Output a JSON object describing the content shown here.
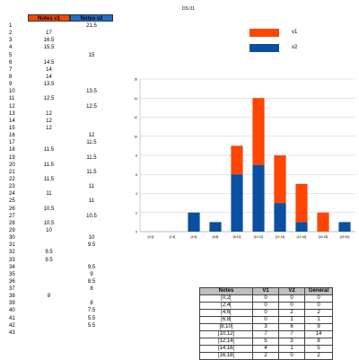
{
  "title": "DS 01",
  "columns": {
    "v1": "Notes v1",
    "v2": "Notes v2"
  },
  "rows": [
    {
      "n": "1",
      "v1": "",
      "v2": "21.5"
    },
    {
      "n": "2",
      "v1": "17",
      "v2": ""
    },
    {
      "n": "3",
      "v1": "16.5",
      "v2": ""
    },
    {
      "n": "4",
      "v1": "15.5",
      "v2": ""
    },
    {
      "n": "5",
      "v1": "",
      "v2": "15"
    },
    {
      "n": "6",
      "v1": "14.5",
      "v2": ""
    },
    {
      "n": "7",
      "v1": "14",
      "v2": ""
    },
    {
      "n": "8",
      "v1": "14",
      "v2": ""
    },
    {
      "n": "9",
      "v1": "13.5",
      "v2": ""
    },
    {
      "n": "10",
      "v1": "",
      "v2": "13.5"
    },
    {
      "n": "11",
      "v1": "12.5",
      "v2": ""
    },
    {
      "n": "12",
      "v1": "",
      "v2": "12.5"
    },
    {
      "n": "13",
      "v1": "12",
      "v2": ""
    },
    {
      "n": "14",
      "v1": "12",
      "v2": ""
    },
    {
      "n": "15",
      "v1": "12",
      "v2": ""
    },
    {
      "n": "16",
      "v1": "",
      "v2": "12"
    },
    {
      "n": "17",
      "v1": "",
      "v2": "11.5"
    },
    {
      "n": "18",
      "v1": "11.5",
      "v2": ""
    },
    {
      "n": "19",
      "v1": "",
      "v2": "11.5"
    },
    {
      "n": "20",
      "v1": "11.5",
      "v2": ""
    },
    {
      "n": "21",
      "v1": "",
      "v2": "11.5"
    },
    {
      "n": "22",
      "v1": "11.5",
      "v2": ""
    },
    {
      "n": "23",
      "v1": "",
      "v2": "11"
    },
    {
      "n": "24",
      "v1": "11",
      "v2": ""
    },
    {
      "n": "25",
      "v1": "",
      "v2": "11"
    },
    {
      "n": "26",
      "v1": "10.5",
      "v2": ""
    },
    {
      "n": "27",
      "v1": "",
      "v2": "10.5"
    },
    {
      "n": "28",
      "v1": "10.5",
      "v2": ""
    },
    {
      "n": "29",
      "v1": "10",
      "v2": ""
    },
    {
      "n": "30",
      "v1": "",
      "v2": "10"
    },
    {
      "n": "31",
      "v1": "",
      "v2": "9.5"
    },
    {
      "n": "32",
      "v1": "9.5",
      "v2": ""
    },
    {
      "n": "33",
      "v1": "9.5",
      "v2": ""
    },
    {
      "n": "34",
      "v1": "",
      "v2": "9.5"
    },
    {
      "n": "35",
      "v1": "",
      "v2": "9"
    },
    {
      "n": "36",
      "v1": "",
      "v2": "8.5"
    },
    {
      "n": "37",
      "v1": "",
      "v2": "8"
    },
    {
      "n": "38",
      "v1": "8",
      "v2": ""
    },
    {
      "n": "39",
      "v1": "",
      "v2": "8"
    },
    {
      "n": "40",
      "v1": "",
      "v2": "7.5"
    },
    {
      "n": "41",
      "v1": "",
      "v2": "5.5"
    },
    {
      "n": "42",
      "v1": "",
      "v2": "5.5"
    },
    {
      "n": "43",
      "v1": "",
      "v2": ""
    }
  ],
  "legend": [
    {
      "name": "v1",
      "color": "#ff4500"
    },
    {
      "name": "v2",
      "color": "#0a4fa0"
    }
  ],
  "chart_data": {
    "type": "bar",
    "stacked": true,
    "categories": [
      "[0;2[",
      "[2;4[",
      "[4;6[",
      "[6;8[",
      "[8;10[",
      "[10;12[",
      "[12;14[",
      "[14;16[",
      "[16;18[",
      "[18;20]"
    ],
    "series": [
      {
        "name": "v2",
        "color": "#0a4fa0",
        "values": [
          0,
          0,
          2,
          1,
          6,
          7,
          3,
          1,
          0,
          1
        ]
      },
      {
        "name": "v1",
        "color": "#ff4500",
        "values": [
          0,
          0,
          0,
          0,
          3,
          7,
          5,
          4,
          2,
          0
        ]
      }
    ],
    "ylim": [
      0,
      16
    ],
    "yticks": [
      0,
      2,
      4,
      6,
      8,
      10,
      12,
      14,
      16
    ],
    "grid": true,
    "legend": "top-right"
  },
  "summary": {
    "headers": [
      "Notes",
      "V1",
      "V2",
      "Général"
    ],
    "rows": [
      [
        "[0;2[",
        "0",
        "0",
        "0"
      ],
      [
        "[2;4[",
        "0",
        "0",
        "0"
      ],
      [
        "[4;6[",
        "0",
        "2",
        "2"
      ],
      [
        "[6;8[",
        "0",
        "1",
        "1"
      ],
      [
        "[8;10[",
        "3",
        "6",
        "9"
      ],
      [
        "[10;12[",
        "7",
        "7",
        "14"
      ],
      [
        "[12;14[",
        "5",
        "3",
        "8"
      ],
      [
        "[14;16[",
        "4",
        "1",
        "5"
      ],
      [
        "[16;18[",
        "2",
        "0",
        "2"
      ]
    ]
  }
}
